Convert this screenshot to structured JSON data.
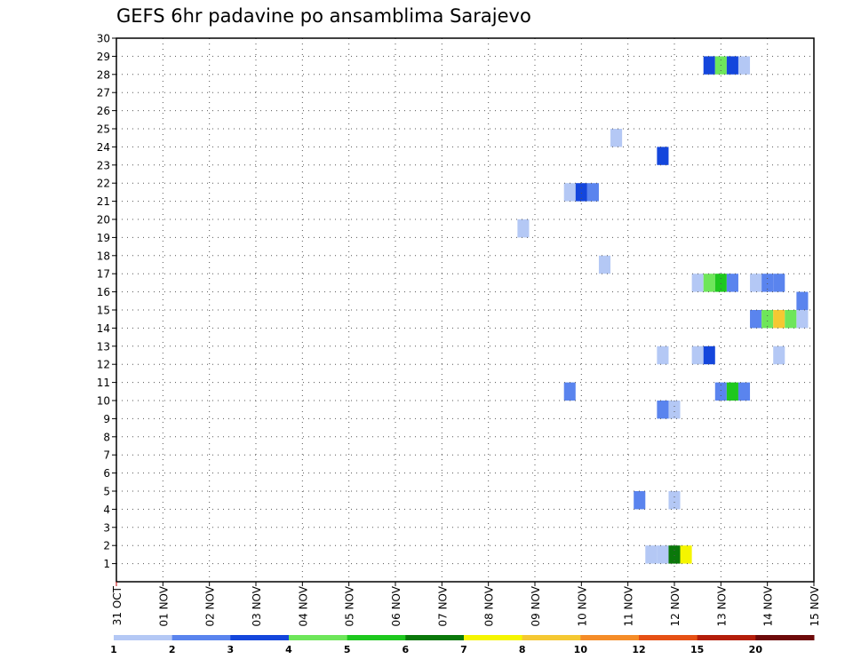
{
  "chart_data": {
    "type": "heatmap",
    "title": "GEFS 6hr padavine po ansamblima Sarajevo",
    "x_ticks": [
      "31 OCT",
      "01 NOV",
      "02 NOV",
      "03 NOV",
      "04 NOV",
      "05 NOV",
      "06 NOV",
      "07 NOV",
      "08 NOV",
      "09 NOV",
      "10 NOV",
      "11 NOV",
      "12 NOV",
      "13 NOV",
      "14 NOV",
      "15 NOV"
    ],
    "x_range_days": [
      0,
      15
    ],
    "y_ticks": [
      "1",
      "2",
      "3",
      "4",
      "5",
      "6",
      "7",
      "8",
      "9",
      "10",
      "11",
      "12",
      "13",
      "14",
      "15",
      "16",
      "17",
      "18",
      "19",
      "20",
      "21",
      "22",
      "23",
      "24",
      "25",
      "26",
      "27",
      "28",
      "29",
      "30"
    ],
    "y_range": [
      0,
      30
    ],
    "grid": true,
    "colorbar": {
      "labels": [
        "1",
        "2",
        "3",
        "4",
        "5",
        "6",
        "7",
        "8",
        "10",
        "12",
        "15",
        "20"
      ],
      "colors": [
        "#b4c8f5",
        "#5a84ee",
        "#1446dc",
        "#6ee65a",
        "#1ec81e",
        "#0a780a",
        "#f5f500",
        "#f5c832",
        "#f58c28",
        "#e65014",
        "#b41e0a",
        "#6e0a0a"
      ]
    },
    "cells": [
      {
        "day": 8.75,
        "member": 19.5,
        "value": 1
      },
      {
        "day": 9.75,
        "member": 21.5,
        "value": 1
      },
      {
        "day": 10.0,
        "member": 21.5,
        "value": 3
      },
      {
        "day": 10.25,
        "member": 21.5,
        "value": 2
      },
      {
        "day": 9.75,
        "member": 10.5,
        "value": 2
      },
      {
        "day": 10.5,
        "member": 17.5,
        "value": 1
      },
      {
        "day": 10.75,
        "member": 24.5,
        "value": 1
      },
      {
        "day": 11.25,
        "member": 4.5,
        "value": 2
      },
      {
        "day": 11.5,
        "member": 1.5,
        "value": 1
      },
      {
        "day": 11.75,
        "member": 1.5,
        "value": 1
      },
      {
        "day": 12.0,
        "member": 1.5,
        "value": 6
      },
      {
        "day": 12.25,
        "member": 1.5,
        "value": 7
      },
      {
        "day": 11.75,
        "member": 9.5,
        "value": 2
      },
      {
        "day": 12.0,
        "member": 9.5,
        "value": 1
      },
      {
        "day": 12.0,
        "member": 4.5,
        "value": 1
      },
      {
        "day": 11.75,
        "member": 12.5,
        "value": 1
      },
      {
        "day": 11.75,
        "member": 23.5,
        "value": 3
      },
      {
        "day": 12.5,
        "member": 12.5,
        "value": 1
      },
      {
        "day": 12.75,
        "member": 12.5,
        "value": 3
      },
      {
        "day": 12.5,
        "member": 16.5,
        "value": 1
      },
      {
        "day": 12.75,
        "member": 16.5,
        "value": 4
      },
      {
        "day": 13.0,
        "member": 16.5,
        "value": 5
      },
      {
        "day": 13.25,
        "member": 16.5,
        "value": 2
      },
      {
        "day": 13.0,
        "member": 10.5,
        "value": 2
      },
      {
        "day": 13.25,
        "member": 10.5,
        "value": 5
      },
      {
        "day": 13.5,
        "member": 10.5,
        "value": 2
      },
      {
        "day": 12.75,
        "member": 28.5,
        "value": 3
      },
      {
        "day": 13.0,
        "member": 28.5,
        "value": 4
      },
      {
        "day": 13.25,
        "member": 28.5,
        "value": 3
      },
      {
        "day": 13.5,
        "member": 28.5,
        "value": 1
      },
      {
        "day": 13.75,
        "member": 16.5,
        "value": 1
      },
      {
        "day": 14.0,
        "member": 16.5,
        "value": 2
      },
      {
        "day": 14.25,
        "member": 16.5,
        "value": 2
      },
      {
        "day": 14.25,
        "member": 12.5,
        "value": 1
      },
      {
        "day": 13.75,
        "member": 14.5,
        "value": 2
      },
      {
        "day": 14.0,
        "member": 14.5,
        "value": 4
      },
      {
        "day": 14.25,
        "member": 14.5,
        "value": 8
      },
      {
        "day": 14.5,
        "member": 14.5,
        "value": 4
      },
      {
        "day": 14.75,
        "member": 14.5,
        "value": 1
      },
      {
        "day": 14.75,
        "member": 15.5,
        "value": 2
      }
    ]
  }
}
